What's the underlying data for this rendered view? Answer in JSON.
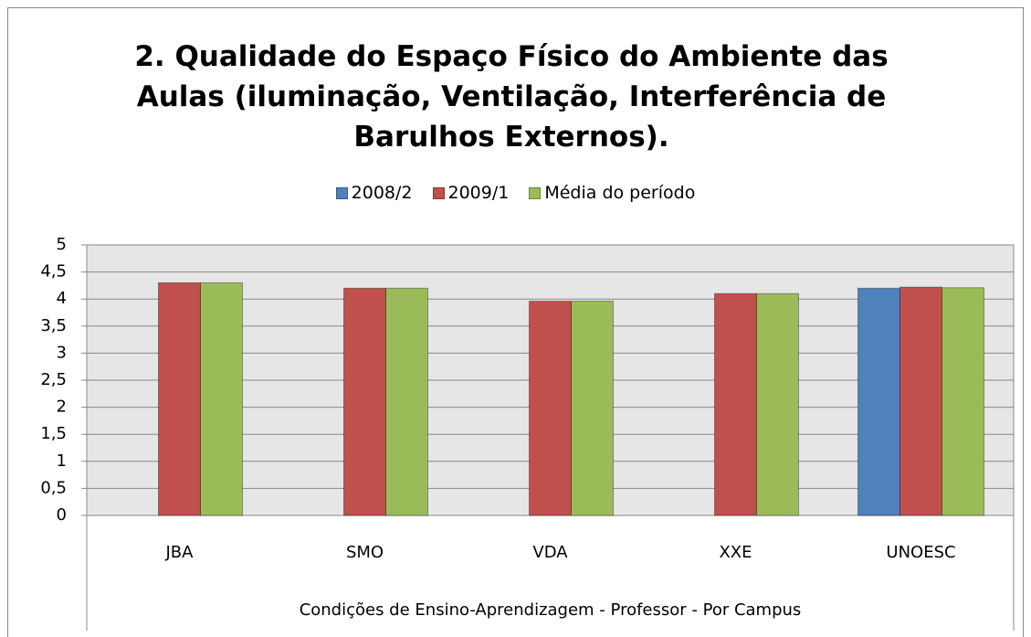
{
  "chart_data": {
    "type": "bar",
    "title": "2. Qualidade do Espaço Físico do Ambiente das Aulas (iluminação, Ventilação, Interferência de Barulhos Externos).",
    "x_label": "Condições de Ensino-Aprendizagem - Professor - Por Campus",
    "categories": [
      "JBA",
      "SMO",
      "VDA",
      "XXE",
      "UNOESC"
    ],
    "series": [
      {
        "name": "2008/2",
        "color": "#4f81bd",
        "values": [
          null,
          null,
          null,
          null,
          4.2
        ]
      },
      {
        "name": "2009/1",
        "color": "#c0504d",
        "values": [
          4.3,
          4.2,
          3.96,
          4.1,
          4.22
        ]
      },
      {
        "name": "Média do período",
        "color": "#9bbb59",
        "values": [
          4.3,
          4.2,
          3.96,
          4.1,
          4.21
        ]
      }
    ],
    "ylim": [
      0,
      5
    ],
    "yticks": [
      0,
      {
        "value": 0.5,
        "label": "0,5"
      },
      1,
      {
        "value": 1.5,
        "label": "1,5"
      },
      2,
      {
        "value": 2.5,
        "label": "2,5"
      },
      3,
      {
        "value": 3.5,
        "label": "3,5"
      },
      4,
      {
        "value": 4.5,
        "label": "4,5"
      },
      5
    ],
    "grid": true,
    "legend": "top"
  }
}
